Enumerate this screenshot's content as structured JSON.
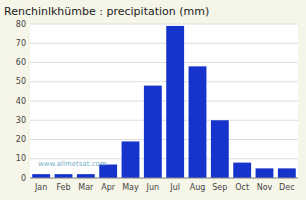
{
  "chart_data": {
    "type": "bar",
    "title": "Renchinlkhümbe : precipitation (mm)",
    "categories": [
      "Jan",
      "Feb",
      "Mar",
      "Apr",
      "May",
      "Jun",
      "Jul",
      "Aug",
      "Sep",
      "Oct",
      "Nov",
      "Dec"
    ],
    "values": [
      2,
      2,
      2,
      7,
      19,
      48,
      79,
      58,
      30,
      8,
      5,
      5
    ],
    "color": "#1633cc",
    "ylim": [
      0,
      80
    ],
    "yticks": [
      0,
      10,
      20,
      30,
      40,
      50,
      60,
      70,
      80
    ],
    "grid": true,
    "annotations": [
      "www.allmetsat.com"
    ]
  }
}
